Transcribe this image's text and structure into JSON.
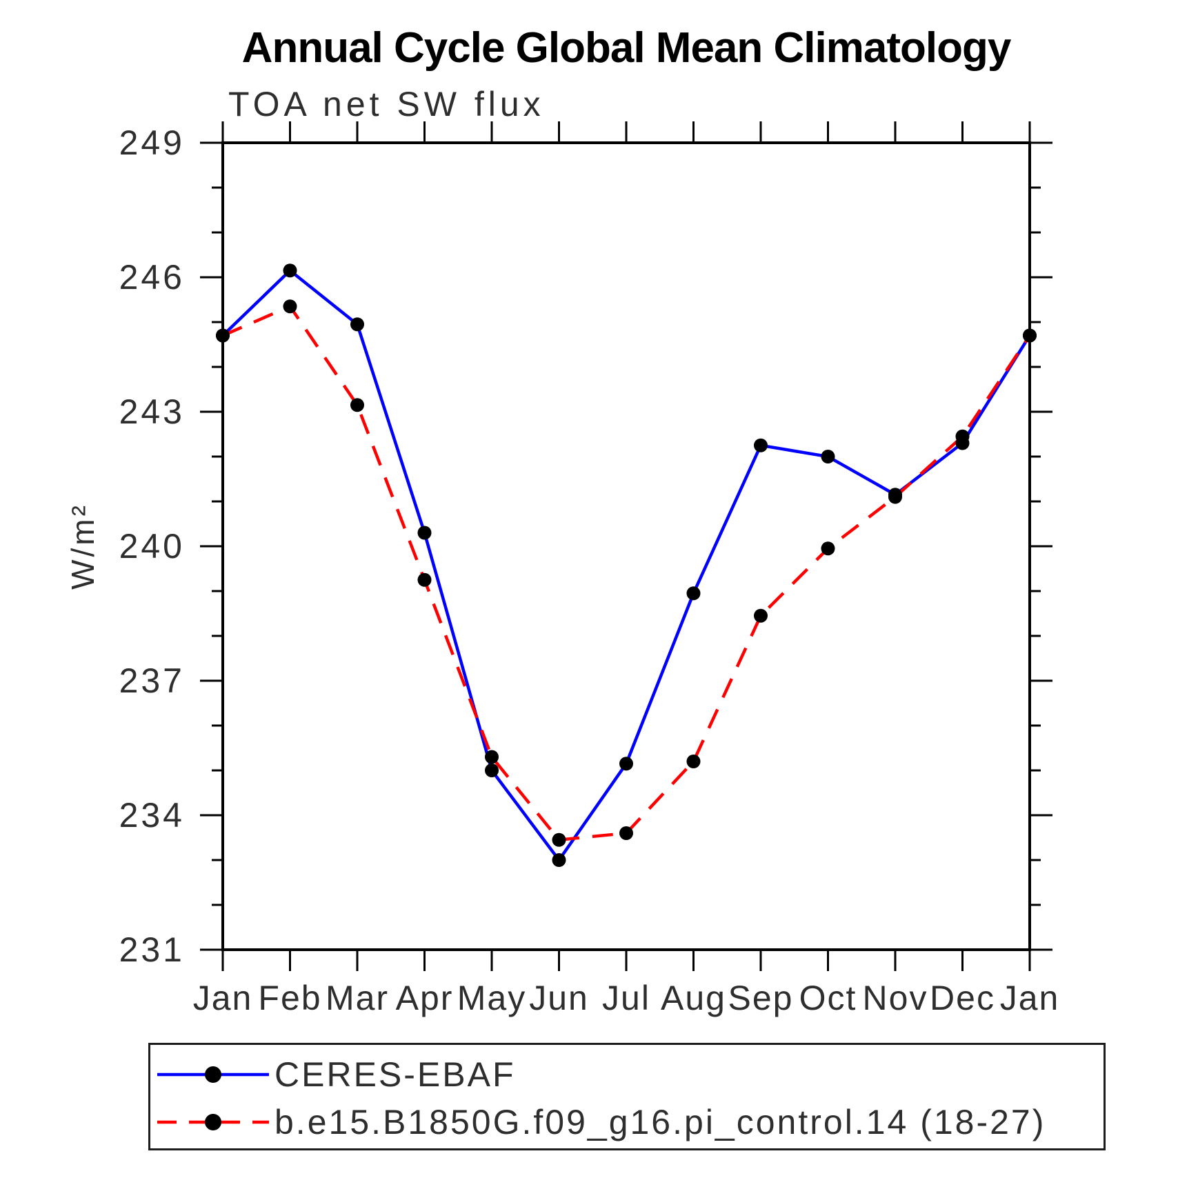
{
  "chart_data": {
    "type": "line",
    "title": "Annual Cycle Global Mean Climatology",
    "subtitle": "TOA net SW flux",
    "ylabel": "W/m²",
    "categories": [
      "Jan",
      "Feb",
      "Mar",
      "Apr",
      "May",
      "Jun",
      "Jul",
      "Aug",
      "Sep",
      "Oct",
      "Nov",
      "Dec",
      "Jan"
    ],
    "ylim": [
      231,
      249
    ],
    "ytick_major_step": 3,
    "ytick_minor_step": 1,
    "ytick_labels": [
      "231",
      "234",
      "237",
      "240",
      "243",
      "246",
      "249"
    ],
    "grid": false,
    "legend_position": "bottom",
    "marker_color": "#000000",
    "axis_color": "#000000",
    "series": [
      {
        "name": "CERES-EBAF",
        "color": "#0000ff",
        "style": "solid",
        "values": [
          244.7,
          246.15,
          244.95,
          240.3,
          235.0,
          233.0,
          235.15,
          238.95,
          242.25,
          242.0,
          241.15,
          242.3,
          244.7
        ]
      },
      {
        "name": "b.e15.B1850G.f09_g16.pi_control.14 (18-27)",
        "color": "#ff0000",
        "style": "dashed",
        "values": [
          244.7,
          245.35,
          243.15,
          239.25,
          235.3,
          233.45,
          233.6,
          235.2,
          238.45,
          239.95,
          241.1,
          242.45,
          244.7
        ]
      }
    ]
  }
}
